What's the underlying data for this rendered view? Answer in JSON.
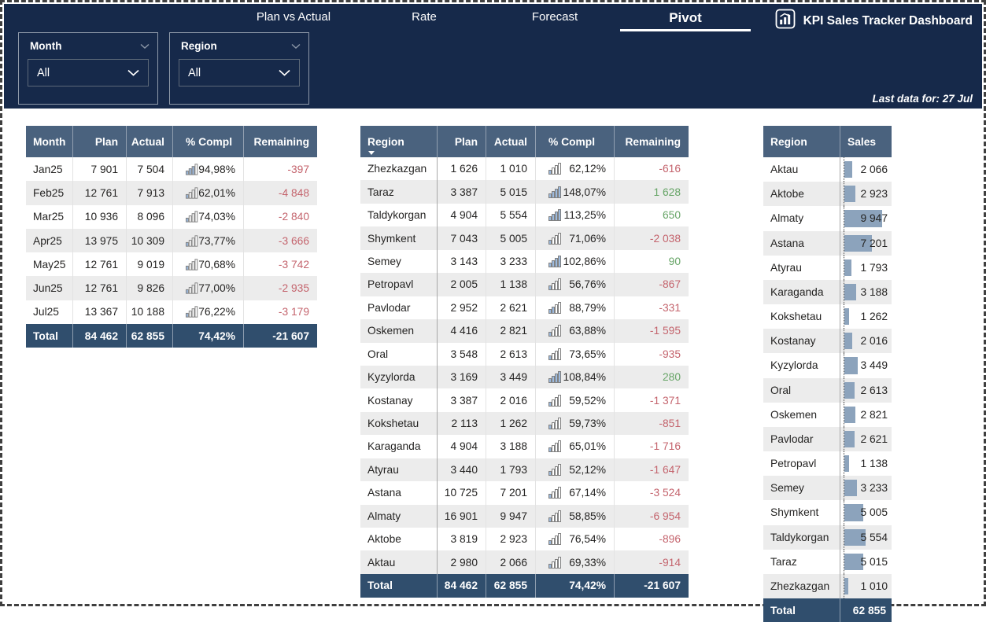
{
  "header": {
    "tabs": [
      {
        "label": "Plan vs Actual",
        "active": false
      },
      {
        "label": "Rate",
        "active": false
      },
      {
        "label": "Forecast",
        "active": false
      },
      {
        "label": "Pivot",
        "active": true
      }
    ],
    "brand": {
      "title": "KPI Sales Tracker Dashboard",
      "icon": "bar-chart-icon"
    },
    "slicers": [
      {
        "label": "Month",
        "value": "All"
      },
      {
        "label": "Region",
        "value": "All"
      }
    ],
    "last_data": "Last data for: 27 Jul"
  },
  "colors": {
    "navy": "#16294a",
    "table_header": "#4a627e",
    "total_row": "#304e6d",
    "negative": "#c4646d",
    "positive": "#67a567",
    "data_bar": "#8ca3bc",
    "alt_row": "#ececec"
  },
  "tables": {
    "month": {
      "columns": [
        "Month",
        "Plan",
        "Actual",
        "% Compl",
        "Remaining"
      ],
      "rows": [
        {
          "label": "Jan25",
          "plan": "7 901",
          "actual": "7 504",
          "pct": "94,98%",
          "pct_value": 94.98,
          "remaining": "-397"
        },
        {
          "label": "Feb25",
          "plan": "12 761",
          "actual": "7 913",
          "pct": "62,01%",
          "pct_value": 62.01,
          "remaining": "-4 848"
        },
        {
          "label": "Mar25",
          "plan": "10 936",
          "actual": "8 096",
          "pct": "74,03%",
          "pct_value": 74.03,
          "remaining": "-2 840"
        },
        {
          "label": "Apr25",
          "plan": "13 975",
          "actual": "10 309",
          "pct": "73,77%",
          "pct_value": 73.77,
          "remaining": "-3 666"
        },
        {
          "label": "May25",
          "plan": "12 761",
          "actual": "9 019",
          "pct": "70,68%",
          "pct_value": 70.68,
          "remaining": "-3 742"
        },
        {
          "label": "Jun25",
          "plan": "12 761",
          "actual": "9 826",
          "pct": "77,00%",
          "pct_value": 77.0,
          "remaining": "-2 935"
        },
        {
          "label": "Jul25",
          "plan": "13 367",
          "actual": "10 188",
          "pct": "76,22%",
          "pct_value": 76.22,
          "remaining": "-3 179"
        }
      ],
      "total": {
        "label": "Total",
        "plan": "84 462",
        "actual": "62 855",
        "pct": "74,42%",
        "remaining": "-21 607"
      }
    },
    "region": {
      "columns": [
        "Region",
        "Plan",
        "Actual",
        "% Compl",
        "Remaining"
      ],
      "sorted_by": "Region",
      "sort_direction": "descending",
      "rows": [
        {
          "label": "Zhezkazgan",
          "plan": "1 626",
          "actual": "1 010",
          "pct": "62,12%",
          "pct_value": 62.12,
          "remaining": "-616"
        },
        {
          "label": "Taraz",
          "plan": "3 387",
          "actual": "5 015",
          "pct": "148,07%",
          "pct_value": 148.07,
          "remaining": "1 628"
        },
        {
          "label": "Taldykorgan",
          "plan": "4 904",
          "actual": "5 554",
          "pct": "113,25%",
          "pct_value": 113.25,
          "remaining": "650"
        },
        {
          "label": "Shymkent",
          "plan": "7 043",
          "actual": "5 005",
          "pct": "71,06%",
          "pct_value": 71.06,
          "remaining": "-2 038"
        },
        {
          "label": "Semey",
          "plan": "3 143",
          "actual": "3 233",
          "pct": "102,86%",
          "pct_value": 102.86,
          "remaining": "90"
        },
        {
          "label": "Petropavl",
          "plan": "2 005",
          "actual": "1 138",
          "pct": "56,76%",
          "pct_value": 56.76,
          "remaining": "-867"
        },
        {
          "label": "Pavlodar",
          "plan": "2 952",
          "actual": "2 621",
          "pct": "88,79%",
          "pct_value": 88.79,
          "remaining": "-331"
        },
        {
          "label": "Oskemen",
          "plan": "4 416",
          "actual": "2 821",
          "pct": "63,88%",
          "pct_value": 63.88,
          "remaining": "-1 595"
        },
        {
          "label": "Oral",
          "plan": "3 548",
          "actual": "2 613",
          "pct": "73,65%",
          "pct_value": 73.65,
          "remaining": "-935"
        },
        {
          "label": "Kyzylorda",
          "plan": "3 169",
          "actual": "3 449",
          "pct": "108,84%",
          "pct_value": 108.84,
          "remaining": "280"
        },
        {
          "label": "Kostanay",
          "plan": "3 387",
          "actual": "2 016",
          "pct": "59,52%",
          "pct_value": 59.52,
          "remaining": "-1 371"
        },
        {
          "label": "Kokshetau",
          "plan": "2 113",
          "actual": "1 262",
          "pct": "59,73%",
          "pct_value": 59.73,
          "remaining": "-851"
        },
        {
          "label": "Karaganda",
          "plan": "4 904",
          "actual": "3 188",
          "pct": "65,01%",
          "pct_value": 65.01,
          "remaining": "-1 716"
        },
        {
          "label": "Atyrau",
          "plan": "3 440",
          "actual": "1 793",
          "pct": "52,12%",
          "pct_value": 52.12,
          "remaining": "-1 647"
        },
        {
          "label": "Astana",
          "plan": "10 725",
          "actual": "7 201",
          "pct": "67,14%",
          "pct_value": 67.14,
          "remaining": "-3 524"
        },
        {
          "label": "Almaty",
          "plan": "16 901",
          "actual": "9 947",
          "pct": "58,85%",
          "pct_value": 58.85,
          "remaining": "-6 954"
        },
        {
          "label": "Aktobe",
          "plan": "3 819",
          "actual": "2 923",
          "pct": "76,54%",
          "pct_value": 76.54,
          "remaining": "-896"
        },
        {
          "label": "Aktau",
          "plan": "2 980",
          "actual": "2 066",
          "pct": "69,33%",
          "pct_value": 69.33,
          "remaining": "-914"
        }
      ],
      "total": {
        "label": "Total",
        "plan": "84 462",
        "actual": "62 855",
        "pct": "74,42%",
        "remaining": "-21 607"
      }
    },
    "sales": {
      "columns": [
        "Region",
        "Sales"
      ],
      "max_value": 9947,
      "rows": [
        {
          "label": "Aktau",
          "sales": "2 066",
          "value": 2066
        },
        {
          "label": "Aktobe",
          "sales": "2 923",
          "value": 2923
        },
        {
          "label": "Almaty",
          "sales": "9 947",
          "value": 9947
        },
        {
          "label": "Astana",
          "sales": "7 201",
          "value": 7201
        },
        {
          "label": "Atyrau",
          "sales": "1 793",
          "value": 1793
        },
        {
          "label": "Karaganda",
          "sales": "3 188",
          "value": 3188
        },
        {
          "label": "Kokshetau",
          "sales": "1 262",
          "value": 1262
        },
        {
          "label": "Kostanay",
          "sales": "2 016",
          "value": 2016
        },
        {
          "label": "Kyzylorda",
          "sales": "3 449",
          "value": 3449
        },
        {
          "label": "Oral",
          "sales": "2 613",
          "value": 2613
        },
        {
          "label": "Oskemen",
          "sales": "2 821",
          "value": 2821
        },
        {
          "label": "Pavlodar",
          "sales": "2 621",
          "value": 2621
        },
        {
          "label": "Petropavl",
          "sales": "1 138",
          "value": 1138
        },
        {
          "label": "Semey",
          "sales": "3 233",
          "value": 3233
        },
        {
          "label": "Shymkent",
          "sales": "5 005",
          "value": 5005
        },
        {
          "label": "Taldykorgan",
          "sales": "5 554",
          "value": 5554
        },
        {
          "label": "Taraz",
          "sales": "5 015",
          "value": 5015
        },
        {
          "label": "Zhezkazgan",
          "sales": "1 010",
          "value": 1010
        }
      ],
      "total": {
        "label": "Total",
        "sales": "62 855"
      }
    }
  }
}
